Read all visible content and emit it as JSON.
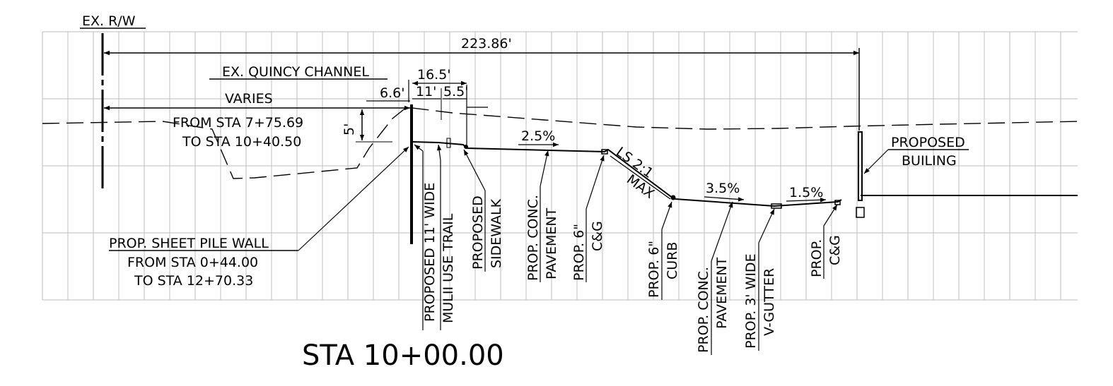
{
  "title": "STA 10+00.00",
  "labels": {
    "ex_rw": "EX. R/W",
    "total_width": "223.86'",
    "channel": "EX. QUINCY CHANNEL",
    "varies": "VARIES",
    "varies_from": "FROM STA 7+75.69",
    "varies_to": "TO STA 10+40.50",
    "depth": "5'",
    "dim_6_6": "6.6'",
    "dim_16_5": "16.5'",
    "dim_11": "11'",
    "dim_5_5": "5.5'",
    "slope_1": "2.5%",
    "slope_ls": "LS 2:1",
    "slope_max": "MAX",
    "slope_2": "3.5%",
    "slope_3": "1.5%",
    "building_1": "PROPOSED",
    "building_2": "BUILING",
    "wall_1": "PROP. SHEET PILE WALL",
    "wall_2": "FROM STA 0+44.00",
    "wall_3": "TO STA 12+70.33",
    "trail_1": "PROPOSED 11' WIDE",
    "trail_2": "MULII USE TRAIL",
    "sidewalk_1": "PROPOSED",
    "sidewalk_2": "SIDEWALK",
    "pavement_a1": "PROP. CONC.",
    "pavement_a2": "PAVEMENT",
    "cg_a1": "PROP. 6\"",
    "cg_a2": "C&G",
    "curb_1": "PROP. 6\"",
    "curb_2": "CURB",
    "pavement_b1": "PROP. CONC.",
    "pavement_b2": "PAVEMENT",
    "gutter_1": "PROP. 3' WIDE",
    "gutter_2": "V-GUTTER",
    "cg_b1": "PROP.",
    "cg_b2": "C&G"
  }
}
